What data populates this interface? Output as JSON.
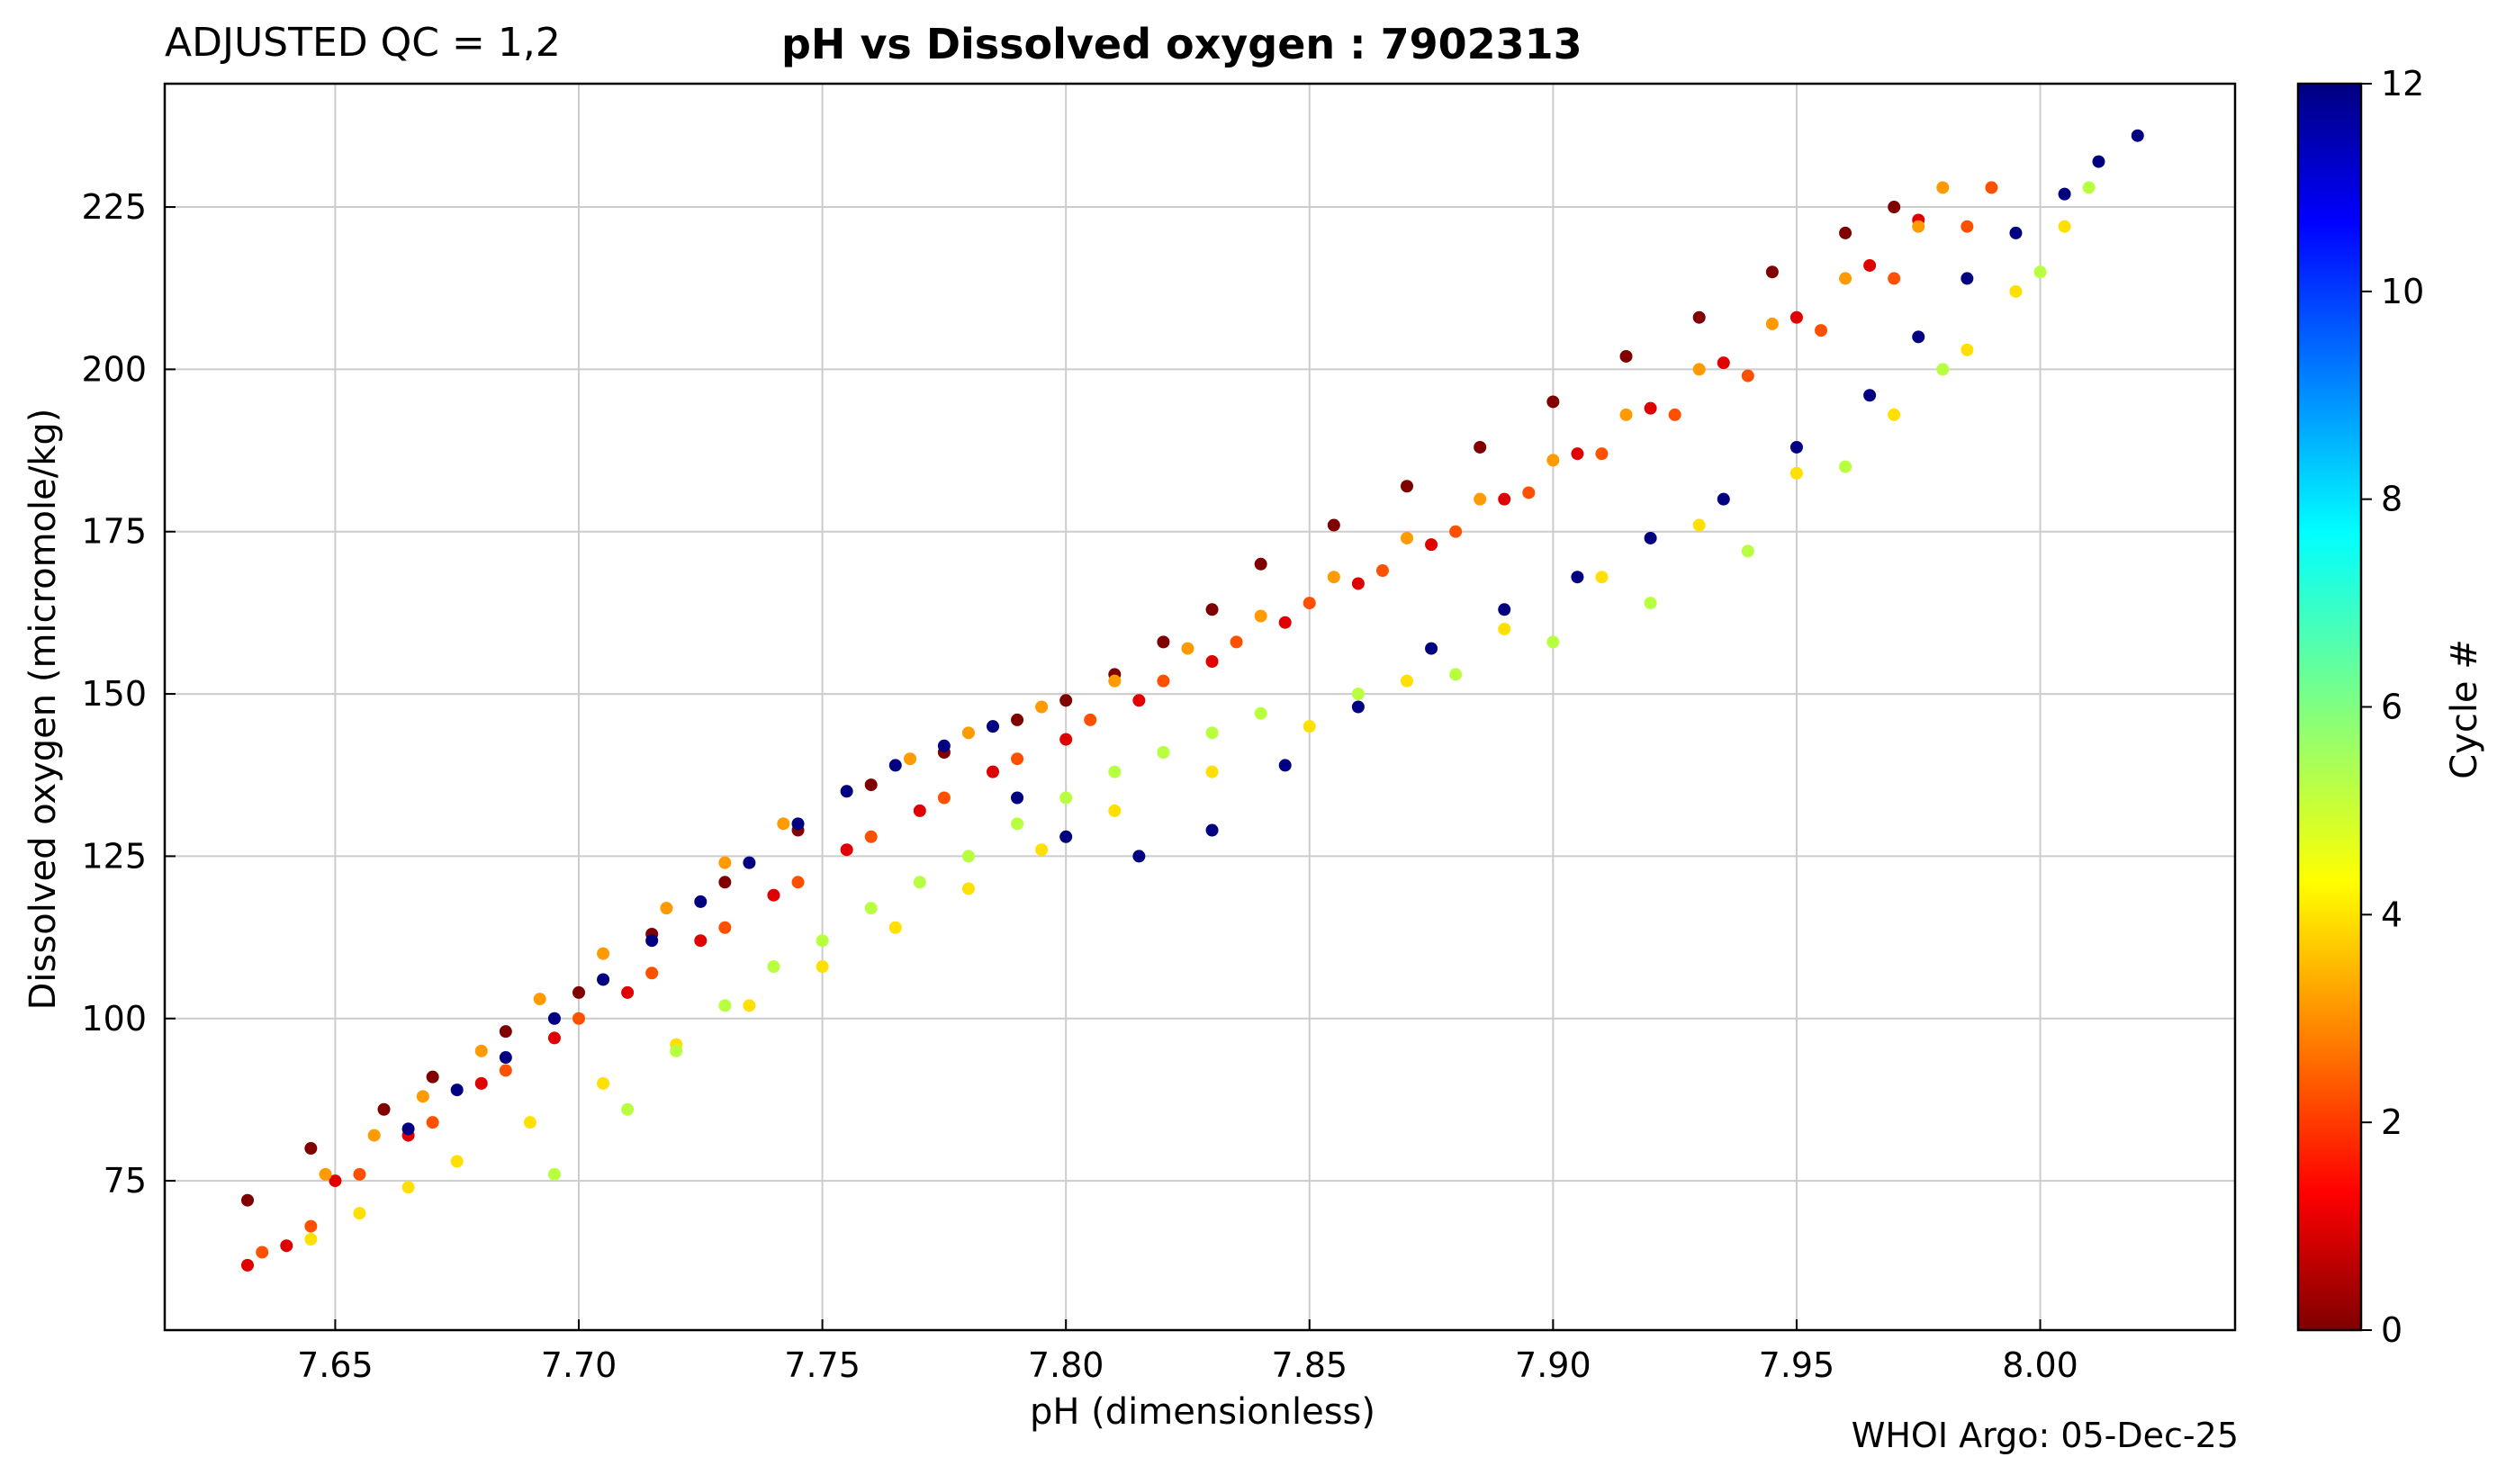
{
  "header": {
    "qc_label": "ADJUSTED QC = 1,2",
    "title": "pH vs Dissolved oxygen : 7902313"
  },
  "footer": {
    "credit": "WHOI Argo: 05-Dec-25"
  },
  "chart_data": {
    "type": "scatter",
    "title": "pH vs Dissolved oxygen : 7902313",
    "xlabel": "pH  (dimensionless)",
    "ylabel": "Dissolved oxygen  (micromole/kg)",
    "xlim": [
      7.615,
      8.04
    ],
    "ylim": [
      52,
      244
    ],
    "x_ticks": [
      7.65,
      7.7,
      7.75,
      7.8,
      7.85,
      7.9,
      7.95,
      8.0
    ],
    "x_tick_labels": [
      "7.65",
      "7.70",
      "7.75",
      "7.80",
      "7.85",
      "7.90",
      "7.95",
      "8.00"
    ],
    "y_ticks": [
      75,
      100,
      125,
      150,
      175,
      200,
      225
    ],
    "y_tick_labels": [
      "75",
      "100",
      "125",
      "150",
      "175",
      "200",
      "225"
    ],
    "grid": true,
    "colorbar": {
      "label": "Cycle #",
      "range": [
        0,
        12
      ],
      "ticks": [
        0,
        2,
        4,
        6,
        8,
        10,
        12
      ],
      "tick_labels": [
        "0",
        "2",
        "4",
        "6",
        "8",
        "10",
        "12"
      ],
      "colormap": "jet"
    },
    "series": [
      {
        "name": "Cycle 0",
        "cycle": 0,
        "color": "#800000",
        "x": [
          7.632,
          7.645,
          7.66,
          7.67,
          7.685,
          7.7,
          7.715,
          7.73,
          7.745,
          7.76,
          7.775,
          7.79,
          7.8,
          7.81,
          7.82,
          7.83,
          7.84,
          7.855,
          7.87,
          7.885,
          7.9,
          7.915,
          7.93,
          7.945,
          7.96,
          7.97
        ],
        "y": [
          72,
          80,
          86,
          91,
          98,
          104,
          113,
          121,
          129,
          136,
          141,
          146,
          149,
          153,
          158,
          163,
          170,
          176,
          182,
          188,
          195,
          202,
          208,
          215,
          221,
          225
        ]
      },
      {
        "name": "Cycle 1",
        "cycle": 1,
        "color": "#e00000",
        "x": [
          7.632,
          7.64,
          7.65,
          7.665,
          7.68,
          7.695,
          7.71,
          7.725,
          7.74,
          7.755,
          7.77,
          7.785,
          7.8,
          7.815,
          7.83,
          7.845,
          7.86,
          7.875,
          7.89,
          7.905,
          7.92,
          7.935,
          7.95,
          7.965,
          7.975
        ],
        "y": [
          62,
          65,
          75,
          82,
          90,
          97,
          104,
          112,
          119,
          126,
          132,
          138,
          143,
          149,
          155,
          161,
          167,
          173,
          180,
          187,
          194,
          201,
          208,
          216,
          223
        ]
      },
      {
        "name": "Cycle 2",
        "cycle": 2,
        "color": "#ff5000",
        "x": [
          7.635,
          7.645,
          7.655,
          7.67,
          7.685,
          7.7,
          7.715,
          7.73,
          7.745,
          7.76,
          7.775,
          7.79,
          7.805,
          7.82,
          7.835,
          7.85,
          7.865,
          7.88,
          7.895,
          7.91,
          7.925,
          7.94,
          7.955,
          7.97,
          7.985,
          7.99
        ],
        "y": [
          64,
          68,
          76,
          84,
          92,
          100,
          107,
          114,
          121,
          128,
          134,
          140,
          146,
          152,
          158,
          164,
          169,
          175,
          181,
          187,
          193,
          199,
          206,
          214,
          222,
          228
        ]
      },
      {
        "name": "Cycle 3",
        "cycle": 3,
        "color": "#ff9a00",
        "x": [
          7.648,
          7.658,
          7.668,
          7.68,
          7.692,
          7.705,
          7.718,
          7.73,
          7.742,
          7.755,
          7.768,
          7.78,
          7.795,
          7.81,
          7.825,
          7.84,
          7.855,
          7.87,
          7.885,
          7.9,
          7.915,
          7.93,
          7.945,
          7.96,
          7.975,
          7.98
        ],
        "y": [
          76,
          82,
          88,
          95,
          103,
          110,
          117,
          124,
          130,
          135,
          140,
          144,
          148,
          152,
          157,
          162,
          168,
          174,
          180,
          186,
          193,
          200,
          207,
          214,
          222,
          228
        ]
      },
      {
        "name": "Cycle 4",
        "cycle": 4,
        "color": "#ffe000",
        "x": [
          7.645,
          7.655,
          7.665,
          7.675,
          7.69,
          7.705,
          7.72,
          7.735,
          7.75,
          7.765,
          7.78,
          7.795,
          7.81,
          7.83,
          7.85,
          7.87,
          7.89,
          7.91,
          7.93,
          7.95,
          7.97,
          7.985,
          7.995,
          8.005
        ],
        "y": [
          66,
          70,
          74,
          78,
          84,
          90,
          96,
          102,
          108,
          114,
          120,
          126,
          132,
          138,
          145,
          152,
          160,
          168,
          176,
          184,
          193,
          203,
          212,
          222
        ]
      },
      {
        "name": "Cycle 5",
        "cycle": 5,
        "color": "#b8ff40",
        "x": [
          7.695,
          7.71,
          7.72,
          7.73,
          7.74,
          7.75,
          7.76,
          7.77,
          7.78,
          7.79,
          7.8,
          7.81,
          7.82,
          7.83,
          7.84,
          7.86,
          7.88,
          7.9,
          7.92,
          7.94,
          7.96,
          7.98,
          8.0,
          8.01
        ],
        "y": [
          76,
          86,
          95,
          102,
          108,
          112,
          117,
          121,
          125,
          130,
          134,
          138,
          141,
          144,
          147,
          150,
          153,
          158,
          164,
          172,
          185,
          200,
          215,
          228
        ]
      },
      {
        "name": "Cycle 12",
        "cycle": 12,
        "color": "#000080",
        "x": [
          7.665,
          7.675,
          7.685,
          7.695,
          7.705,
          7.715,
          7.725,
          7.735,
          7.745,
          7.755,
          7.765,
          7.775,
          7.785,
          7.79,
          7.8,
          7.815,
          7.83,
          7.845,
          7.86,
          7.875,
          7.89,
          7.905,
          7.92,
          7.935,
          7.95,
          7.965,
          7.975,
          7.985,
          7.995,
          8.005,
          8.012,
          8.02
        ],
        "y": [
          83,
          89,
          94,
          100,
          106,
          112,
          118,
          124,
          130,
          135,
          139,
          142,
          145,
          134,
          128,
          125,
          129,
          139,
          148,
          157,
          163,
          168,
          174,
          180,
          188,
          196,
          205,
          214,
          221,
          227,
          232,
          236
        ]
      }
    ]
  }
}
